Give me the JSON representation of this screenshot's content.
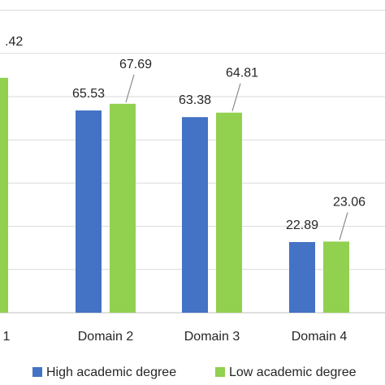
{
  "chart_data": {
    "type": "bar",
    "categories": [
      "1",
      "Domain 2",
      "Domain 3",
      "Domain 4"
    ],
    "series": [
      {
        "name": "High academic degree",
        "color": "#4472c4",
        "values": [
          null,
          65.53,
          63.38,
          22.89
        ]
      },
      {
        "name": "Low academic degree",
        "color": "#92d050",
        "values": [
          null,
          67.69,
          64.81,
          23.06
        ]
      }
    ],
    "data_labels": {
      "visible_partial": ".42"
    },
    "ylim": [
      0,
      100
    ],
    "grid": true,
    "legend": "bottom"
  }
}
